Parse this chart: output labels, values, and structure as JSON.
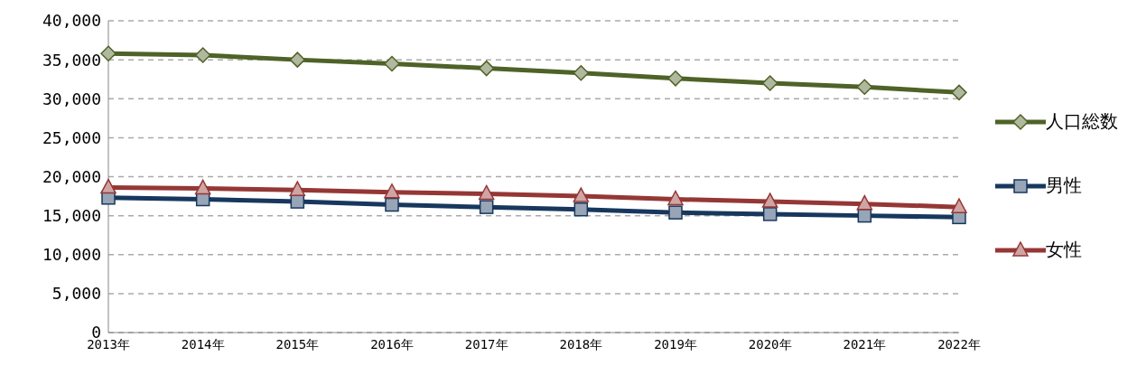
{
  "chart_data": {
    "type": "line",
    "categories": [
      "2013年",
      "2014年",
      "2015年",
      "2016年",
      "2017年",
      "2018年",
      "2019年",
      "2020年",
      "2021年",
      "2022年"
    ],
    "series": [
      {
        "name": "人口総数",
        "color": "#4f6228",
        "marker": "diamond",
        "values": [
          35800,
          35600,
          35000,
          34500,
          33900,
          33300,
          32600,
          32000,
          31500,
          30800
        ]
      },
      {
        "name": "男性",
        "color": "#17375e",
        "marker": "square",
        "values": [
          17300,
          17100,
          16800,
          16400,
          16100,
          15800,
          15400,
          15200,
          15000,
          14800
        ]
      },
      {
        "name": "女性",
        "color": "#953735",
        "marker": "triangle",
        "values": [
          18600,
          18500,
          18300,
          18000,
          17800,
          17500,
          17100,
          16800,
          16500,
          16100
        ]
      }
    ],
    "ylim": [
      0,
      40000
    ],
    "yticks": [
      0,
      {
        "value": 5000,
        "label": "5,000"
      },
      {
        "value": 10000,
        "label": "10,000"
      },
      {
        "value": 15000,
        "label": "15,000"
      },
      {
        "value": 20000,
        "label": "20,000"
      },
      {
        "value": 25000,
        "label": "25,000"
      },
      {
        "value": 30000,
        "label": "30,000"
      },
      {
        "value": 35000,
        "label": "35,000"
      },
      {
        "value": 40000,
        "label": "40,000"
      }
    ],
    "grid": "y",
    "legend": "right",
    "line_style": "solid"
  }
}
